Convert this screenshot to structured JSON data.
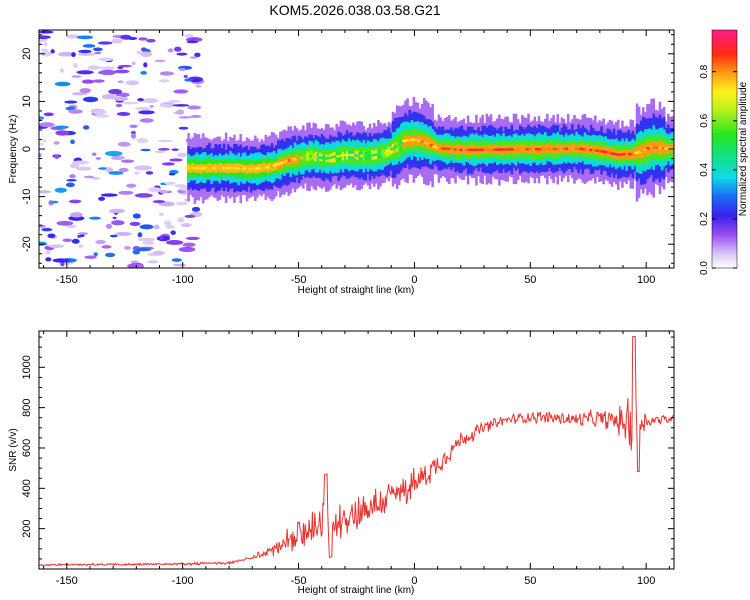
{
  "figure_title": "KOM5.2026.038.03.58.G21",
  "chart_data": [
    {
      "type": "heatmap",
      "xlabel": "Height of straight line (km)",
      "ylabel": "Frequency (Hz)",
      "xlim": [
        -162,
        112
      ],
      "ylim": [
        -25,
        25
      ],
      "xticks": [
        -150,
        -100,
        -50,
        0,
        50,
        100
      ],
      "yticks": [
        -20,
        -10,
        0,
        10,
        20
      ],
      "colorbar": {
        "label": "Normalized spectral amplitude",
        "range": [
          0,
          0.97
        ],
        "ticks": [
          0.0,
          0.2,
          0.4,
          0.6,
          0.8
        ],
        "tick_labels": [
          "0.0",
          "0.2",
          "0.4",
          "0.6",
          "0.8"
        ],
        "colormap": "rainbow (white→violet→blue→cyan→green→yellow→orange→red→magenta)"
      },
      "ridge": {
        "description": "dominant frequency track of the signal",
        "x": [
          -98,
          -80,
          -70,
          -62,
          -55,
          -45,
          -38,
          -30,
          -20,
          -12,
          -8,
          -4,
          0,
          4,
          10,
          20,
          40,
          60,
          70,
          80,
          88,
          94,
          98,
          102,
          106,
          112
        ],
        "y": [
          -4,
          -4,
          -4.2,
          -3.8,
          -2.5,
          -1.5,
          -2,
          -1.2,
          -1.5,
          -0.8,
          0.5,
          1.8,
          2,
          1.5,
          0.2,
          -0.2,
          -0.1,
          0,
          0.1,
          -0.4,
          -1.2,
          -1,
          -0.5,
          0.4,
          0.2,
          0
        ],
        "peak_amplitude": 0.95
      },
      "noise_region": {
        "x_range": [
          -162,
          -93
        ],
        "y_range": [
          -25,
          25
        ],
        "amplitude_range": [
          0.05,
          0.35
        ]
      }
    },
    {
      "type": "line",
      "xlabel": "Height of straight line (km)",
      "ylabel": "SNR (v/v)",
      "xlim": [
        -162,
        112
      ],
      "ylim": [
        0,
        1180
      ],
      "xticks": [
        -150,
        -100,
        -50,
        0,
        50,
        100
      ],
      "yticks": [
        200,
        400,
        600,
        800,
        1000
      ],
      "series": [
        {
          "name": "SNR",
          "color": "#e8342e",
          "trend_x": [
            -162,
            -100,
            -80,
            -70,
            -60,
            -50,
            -40,
            -30,
            -20,
            -10,
            0,
            10,
            20,
            30,
            40,
            50,
            60,
            70,
            80,
            90,
            100,
            112
          ],
          "trend_y": [
            20,
            25,
            30,
            55,
            100,
            160,
            210,
            260,
            300,
            360,
            420,
            520,
            640,
            700,
            740,
            755,
            750,
            740,
            745,
            730,
            735,
            745
          ],
          "noise_amplitude_x": [
            -162,
            -70,
            -60,
            -50,
            -40,
            -20,
            0,
            20,
            40,
            60,
            80,
            90,
            94,
            97,
            100,
            112
          ],
          "noise_amplitude_y": [
            6,
            8,
            50,
            90,
            120,
            110,
            90,
            50,
            30,
            40,
            50,
            90,
            230,
            150,
            40,
            25
          ]
        }
      ]
    }
  ]
}
